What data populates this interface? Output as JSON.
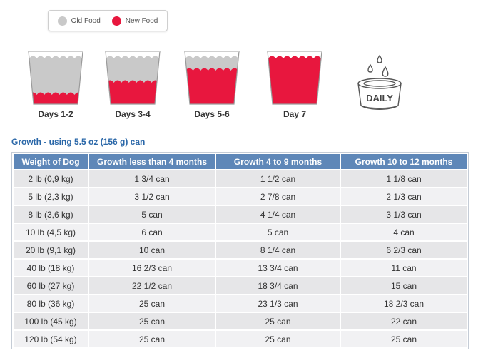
{
  "legend": {
    "old_label": "Old Food",
    "new_label": "New Food",
    "old_color": "#c9c9c9",
    "new_color": "#e8173e"
  },
  "transition": [
    {
      "label": "Days 1-2",
      "new_food_fraction": 0.25
    },
    {
      "label": "Days 3-4",
      "new_food_fraction": 0.5
    },
    {
      "label": "Days 5-6",
      "new_food_fraction": 0.75
    },
    {
      "label": "Day 7",
      "new_food_fraction": 1.0
    }
  ],
  "daily_icon": {
    "icon": "water-bowl-icon",
    "label": "DAILY"
  },
  "section_title": "Growth - using 5.5 oz (156 g) can",
  "table": {
    "headers": [
      "Weight of Dog",
      "Growth less than 4 months",
      "Growth 4 to 9 months",
      "Growth 10 to 12 months"
    ],
    "rows": [
      [
        "2 lb (0,9 kg)",
        "1 3/4 can",
        "1 1/2 can",
        "1 1/8 can"
      ],
      [
        "5 lb (2,3 kg)",
        "3 1/2 can",
        "2 7/8 can",
        "2 1/3 can"
      ],
      [
        "8 lb (3,6 kg)",
        "5 can",
        "4 1/4 can",
        "3 1/3 can"
      ],
      [
        "10 lb (4,5 kg)",
        "6 can",
        "5 can",
        "4 can"
      ],
      [
        "20 lb (9,1 kg)",
        "10 can",
        "8 1/4 can",
        "6 2/3 can"
      ],
      [
        "40 lb (18 kg)",
        "16 2/3 can",
        "13 3/4 can",
        "11 can"
      ],
      [
        "60 lb (27 kg)",
        "22 1/2 can",
        "18 3/4 can",
        "15 can"
      ],
      [
        "80 lb (36 kg)",
        "25 can",
        "23 1/3 can",
        "18 2/3 can"
      ],
      [
        "100 lb (45 kg)",
        "25 can",
        "25 can",
        "22 can"
      ],
      [
        "120 lb (54 kg)",
        "25 can",
        "25 can",
        "25 can"
      ]
    ]
  }
}
